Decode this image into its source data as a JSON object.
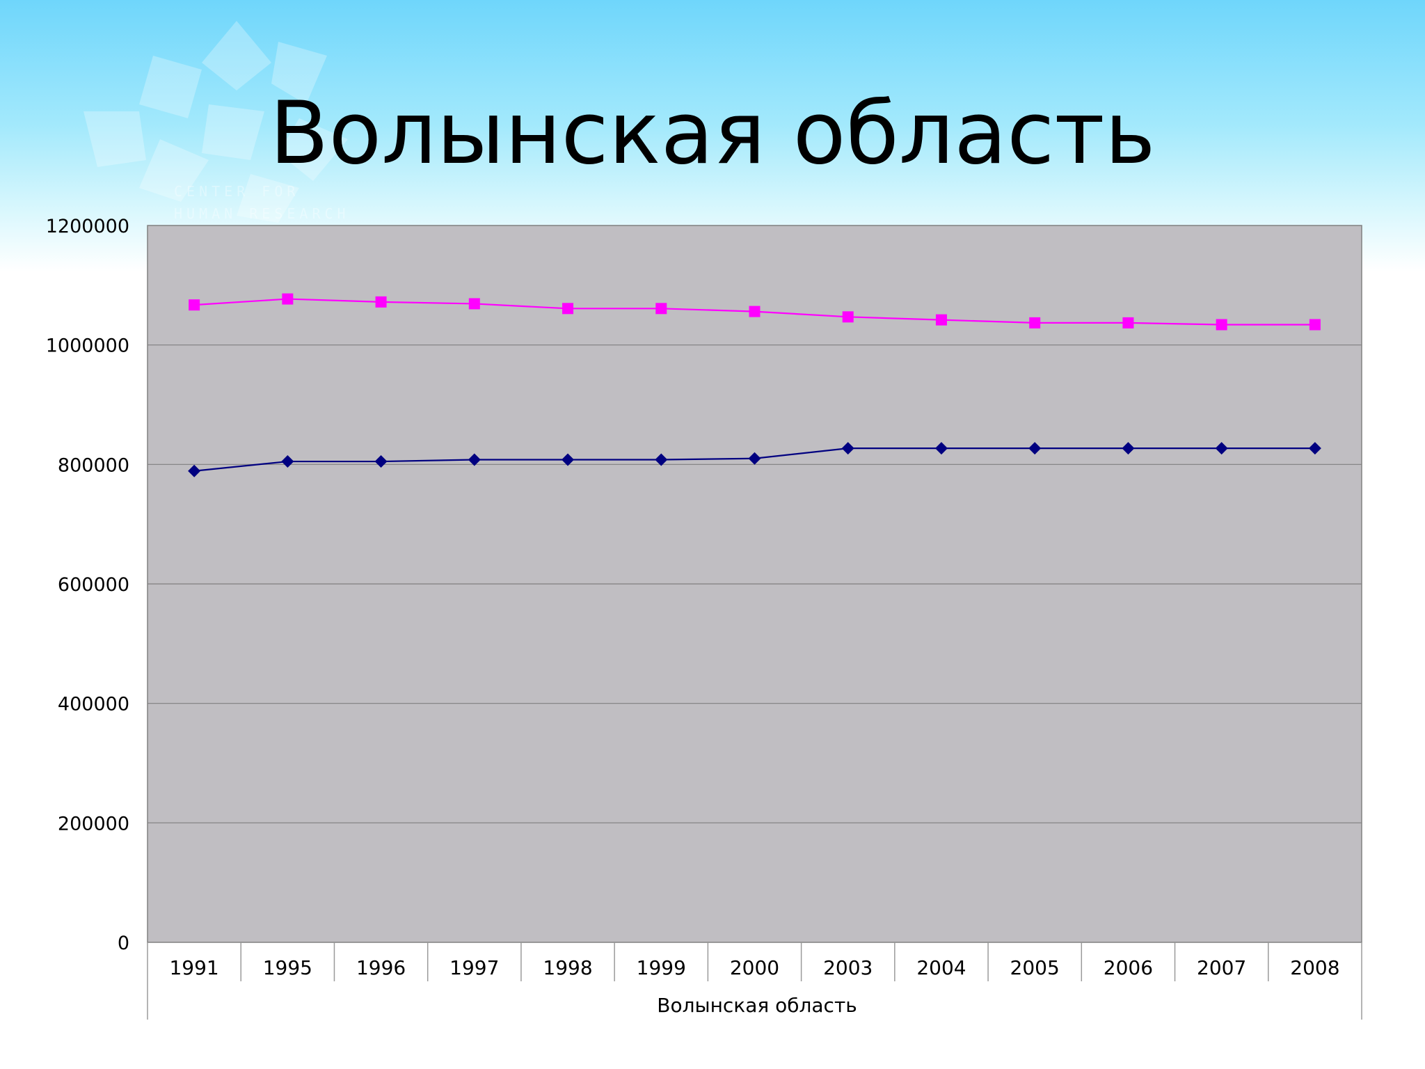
{
  "slide": {
    "title": "Волынская область"
  },
  "logo": {
    "text_line1": "CENTER FOR",
    "text_line2": "HUMAN RESEARCH"
  },
  "chart_data": {
    "type": "line",
    "title": "",
    "xlabel": "Волынская область",
    "ylabel": "",
    "categories": [
      "1991",
      "1995",
      "1996",
      "1997",
      "1998",
      "1999",
      "2000",
      "2003",
      "2004",
      "2005",
      "2006",
      "2007",
      "2008"
    ],
    "ylim": [
      0,
      1200000
    ],
    "yticks": [
      "0",
      "200000",
      "400000",
      "600000",
      "800000",
      "1000000",
      "1200000"
    ],
    "grid": true,
    "legend": "none",
    "plot_background": "#c0bec2",
    "series": [
      {
        "values": [
          1067000,
          1077000,
          1072000,
          1069000,
          1061000,
          1061000,
          1056000,
          1047000,
          1042000,
          1037000,
          1037000,
          1034000,
          1034000
        ],
        "color": "#ff00ff",
        "marker": "square"
      },
      {
        "values": [
          789000,
          805000,
          805000,
          808000,
          808000,
          808000,
          810000,
          827000,
          827000,
          827000,
          827000,
          827000,
          827000
        ],
        "color": "#000080",
        "marker": "diamond"
      }
    ]
  }
}
